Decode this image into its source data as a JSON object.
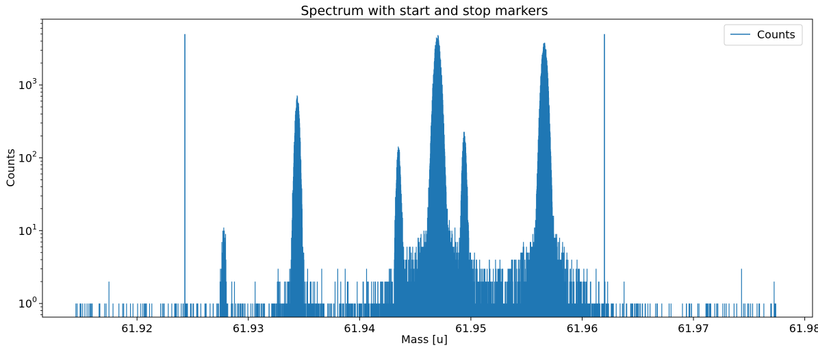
{
  "chart_data": {
    "type": "line",
    "title": "Spectrum with start and stop markers",
    "xlabel": "Mass [u]",
    "ylabel": "Counts",
    "yscale": "log",
    "xlim": [
      61.9115,
      61.9807
    ],
    "ylim": [
      0.65,
      8000
    ],
    "grid": false,
    "legend_position": "top-right",
    "color": "#1f77b4",
    "x_ticks": [
      61.92,
      61.93,
      61.94,
      61.95,
      61.96,
      61.97,
      61.98
    ],
    "x_tick_labels": [
      "61.92",
      "61.93",
      "61.94",
      "61.95",
      "61.96",
      "61.97",
      "61.98"
    ],
    "y_ticks": [
      {
        "value": 1,
        "base": "10",
        "exp": "0"
      },
      {
        "value": 10,
        "base": "10",
        "exp": "1"
      },
      {
        "value": 100,
        "base": "10",
        "exp": "2"
      },
      {
        "value": 1000,
        "base": "10",
        "exp": "3"
      }
    ],
    "x_range": [
      61.9145,
      61.9775
    ],
    "markers": [
      {
        "name": "start",
        "x": 61.9243,
        "y": 5000
      },
      {
        "name": "stop",
        "x": 61.962,
        "y": 5000
      }
    ],
    "series": [
      {
        "name": "Counts",
        "peaks": [
          {
            "x": 61.9278,
            "height": 9,
            "width": 0.00012
          },
          {
            "x": 61.9344,
            "height": 640,
            "width": 0.00016
          },
          {
            "x": 61.9435,
            "height": 130,
            "width": 0.00014
          },
          {
            "x": 61.947,
            "height": 4300,
            "width": 0.00024
          },
          {
            "x": 61.9494,
            "height": 205,
            "width": 0.00014
          },
          {
            "x": 61.9566,
            "height": 3400,
            "width": 0.00022
          }
        ]
      }
    ]
  }
}
